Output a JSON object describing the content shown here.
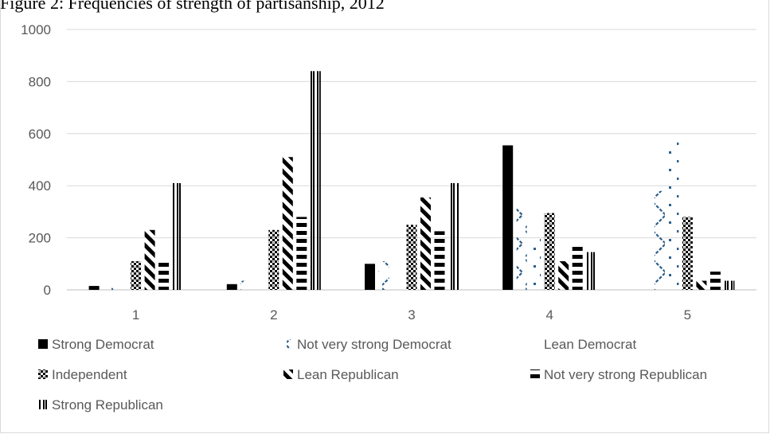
{
  "caption": "Figure 2: Frequencies of strength of partisanship, 2012",
  "chart_data": {
    "type": "bar",
    "categories": [
      "1",
      "2",
      "3",
      "4",
      "5"
    ],
    "ylim": [
      0,
      1000
    ],
    "yticks": [
      0,
      200,
      400,
      600,
      800,
      1000
    ],
    "grid": true,
    "legend_position": "bottom",
    "series": [
      {
        "name": "Strong Democrat",
        "pattern": "solid",
        "color": "#000000",
        "values": [
          15,
          22,
          100,
          555,
          0
        ]
      },
      {
        "name": "Not very strong Democrat",
        "pattern": "zigzag",
        "color": "#2e5f8a",
        "values": [
          15,
          35,
          110,
          325,
          380
        ]
      },
      {
        "name": "Lean Democrat",
        "pattern": "dots",
        "color": "#2e5f8a",
        "values": [
          2,
          0,
          30,
          210,
          580
        ]
      },
      {
        "name": "Independent",
        "pattern": "checker",
        "color": "#000000",
        "values": [
          110,
          230,
          250,
          295,
          280
        ]
      },
      {
        "name": "Lean Republican",
        "pattern": "diagonal",
        "color": "#000000",
        "values": [
          230,
          510,
          355,
          110,
          35
        ]
      },
      {
        "name": "Not very strong Republican",
        "pattern": "horizontal",
        "color": "#000000",
        "values": [
          110,
          280,
          225,
          180,
          70
        ]
      },
      {
        "name": "Strong Republican",
        "pattern": "vertical",
        "color": "#000000",
        "values": [
          410,
          840,
          410,
          145,
          35
        ]
      }
    ]
  }
}
